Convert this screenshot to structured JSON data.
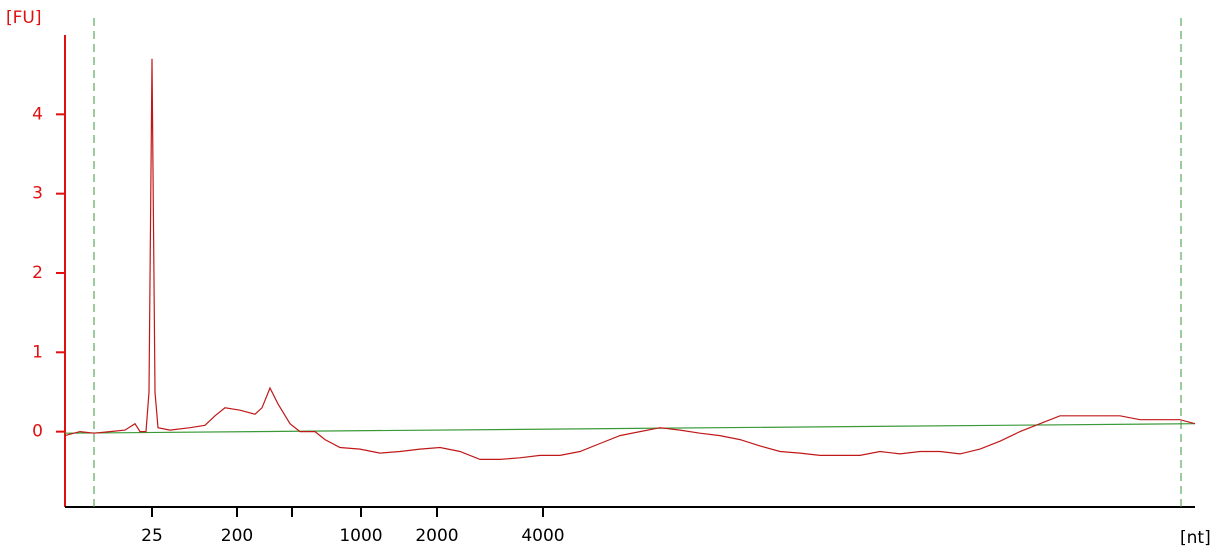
{
  "chart_data": {
    "type": "line",
    "y_label": "[FU]",
    "x_label": "[nt]",
    "xlim": [
      0,
      113
    ],
    "ylim": [
      -0.95,
      5.0
    ],
    "yticks": [
      0,
      1,
      2,
      3,
      4
    ],
    "xticks": [
      {
        "value": 8.7,
        "label": "25"
      },
      {
        "value": 17.2,
        "label": "200"
      },
      {
        "value": 22.7,
        "label": null
      },
      {
        "value": 29.6,
        "label": "1000"
      },
      {
        "value": 37.2,
        "label": "2000"
      },
      {
        "value": 47.8,
        "label": "4000"
      }
    ],
    "markers": {
      "color": "#3a9a3a",
      "x": [
        2.9,
        111.6
      ]
    },
    "y_axis_color": "#e01010",
    "series": [
      {
        "color": "#c01818",
        "x": [
          0,
          1.5,
          2.9,
          4.5,
          6,
          7,
          7.5,
          8.1,
          8.4,
          8.7,
          9,
          9.3,
          10.5,
          12.5,
          14,
          15,
          16,
          17.5,
          19,
          19.7,
          20.5,
          21.3,
          22.5,
          23.5,
          25,
          26,
          27.5,
          29.5,
          31.5,
          33.5,
          35.5,
          37.5,
          39.5,
          41.5,
          43.5,
          45.5,
          47.5,
          49.5,
          51.5,
          53.5,
          55.5,
          57.5,
          59.5,
          61.5,
          63.5,
          65.5,
          67.5,
          69.5,
          71.5,
          73.5,
          75.5,
          77.5,
          79.5,
          81.5,
          83.5,
          85.5,
          87.5,
          89.5,
          91.5,
          93.5,
          95.5,
          97.5,
          99.5,
          101.5,
          103.5,
          105.5,
          107.5,
          111.5,
          113
        ],
        "values": [
          -0.05,
          0.0,
          -0.02,
          0.0,
          0.02,
          0.1,
          0.0,
          0.0,
          0.5,
          4.7,
          0.5,
          0.05,
          0.02,
          0.05,
          0.08,
          0.2,
          0.3,
          0.27,
          0.22,
          0.3,
          0.55,
          0.35,
          0.1,
          0.0,
          0.0,
          -0.1,
          -0.2,
          -0.22,
          -0.27,
          -0.25,
          -0.22,
          -0.2,
          -0.25,
          -0.35,
          -0.35,
          -0.33,
          -0.3,
          -0.3,
          -0.25,
          -0.15,
          -0.05,
          0.0,
          0.05,
          0.02,
          -0.02,
          -0.05,
          -0.1,
          -0.18,
          -0.25,
          -0.27,
          -0.3,
          -0.3,
          -0.3,
          -0.25,
          -0.28,
          -0.25,
          -0.25,
          -0.28,
          -0.22,
          -0.12,
          0.0,
          0.1,
          0.2,
          0.2,
          0.2,
          0.2,
          0.15,
          0.15,
          0.1
        ]
      },
      {
        "color": "#3a9a3a",
        "x": [
          0,
          113
        ],
        "values": [
          -0.02,
          0.1
        ]
      }
    ]
  }
}
